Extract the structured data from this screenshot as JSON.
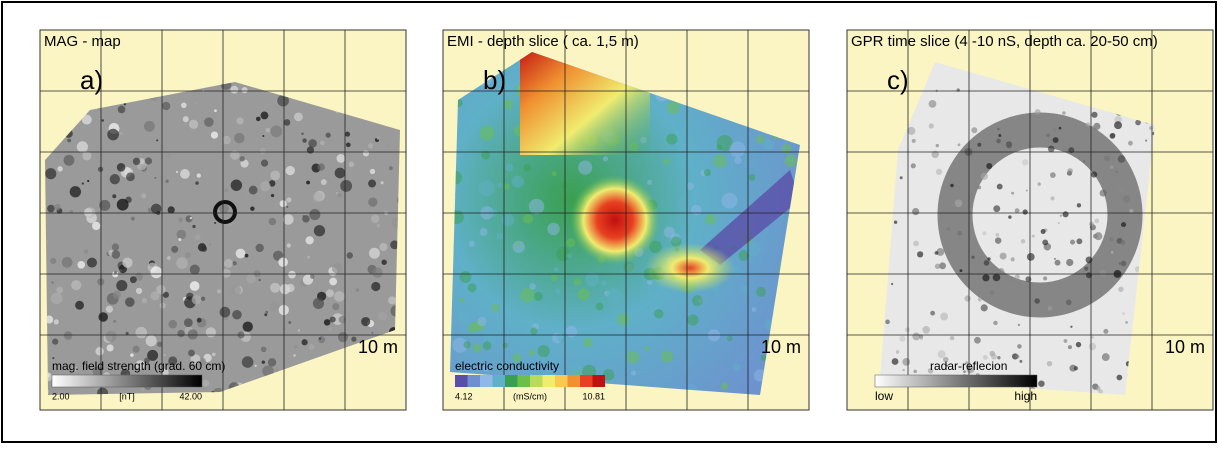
{
  "panels": [
    {
      "title": "MAG - map",
      "letter": "a)",
      "scale": "10 m",
      "legend": {
        "title": "mag. field strength (grad. 60 cm)",
        "min": "2.00",
        "unit": "[nT]",
        "max": "42.00",
        "colors": [
          "#ffffff",
          "#000000"
        ]
      }
    },
    {
      "title": "EMI - depth slice  ( ca. 1,5 m)",
      "letter": "b)",
      "scale": "10 m",
      "legend": {
        "title": "electric conductivity",
        "min": "4.12",
        "unit": "(mS/cm)",
        "max": "10.81",
        "colors": [
          "#5a4fa8",
          "#6f8fd0",
          "#8fb8e8",
          "#5fb0c8",
          "#3aa050",
          "#6cc04a",
          "#b8dc5a",
          "#f0ec70",
          "#f8c850",
          "#f09030",
          "#e84020",
          "#c01010"
        ]
      }
    },
    {
      "title": "GPR time slice (4 -10 nS, depth ca. 20-50 cm)",
      "letter": "c)",
      "scale": "10 m",
      "legend": {
        "title": "radar-reflecion",
        "min": "low",
        "max": "high",
        "colors": [
          "#ffffff",
          "#000000"
        ]
      }
    }
  ]
}
